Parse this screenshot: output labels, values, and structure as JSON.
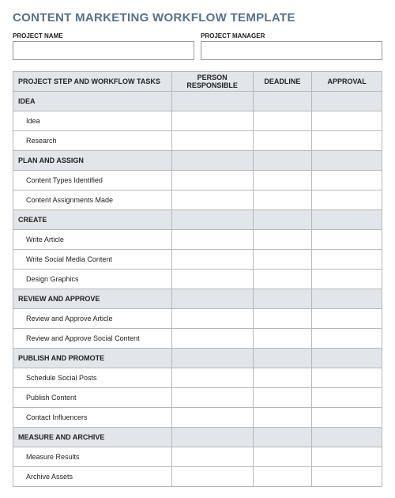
{
  "title": "CONTENT MARKETING WORKFLOW TEMPLATE",
  "meta": {
    "project_name_label": "PROJECT NAME",
    "project_name_value": "",
    "project_manager_label": "PROJECT MANAGER",
    "project_manager_value": ""
  },
  "columns": {
    "c0": "PROJECT STEP AND WORKFLOW TASKS",
    "c1": "PERSON RESPONSIBLE",
    "c2": "DEADLINE",
    "c3": "APPROVAL"
  },
  "sections": [
    {
      "label": "IDEA",
      "tasks": [
        "Idea",
        "Research"
      ]
    },
    {
      "label": "PLAN AND ASSIGN",
      "tasks": [
        "Content Types Identified",
        "Content Assignments Made"
      ]
    },
    {
      "label": "CREATE",
      "tasks": [
        "Write Article",
        "Write Social Media Content",
        "Design Graphics"
      ]
    },
    {
      "label": "REVIEW AND APPROVE",
      "tasks": [
        "Review and Approve Article",
        "Review and Approve Social Content"
      ]
    },
    {
      "label": "PUBLISH AND PROMOTE",
      "tasks": [
        "Schedule Social Posts",
        "Publish Content",
        "Contact Influencers"
      ]
    },
    {
      "label": "MEASURE AND ARCHIVE",
      "tasks": [
        "Measure Results",
        "Archive Assets"
      ]
    }
  ],
  "colors": {
    "title": "#56718a",
    "header_bg": "#e2e5e9",
    "border": "#b8b8b8",
    "text": "#222222",
    "page_bg": "#ffffff"
  }
}
